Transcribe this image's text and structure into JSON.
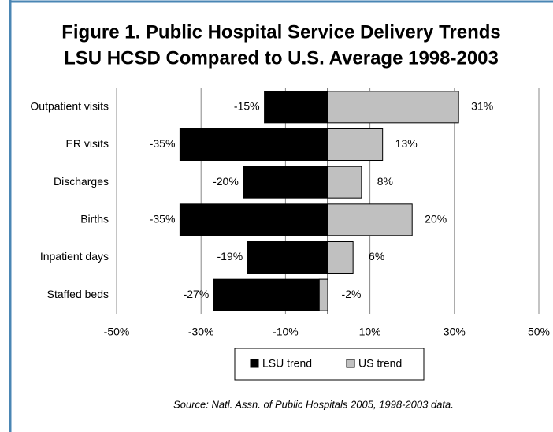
{
  "chart_data": {
    "type": "bar",
    "orientation": "horizontal",
    "title": [
      "Figure 1.  Public Hospital Service Delivery Trends",
      "LSU HCSD Compared to U.S. Average 1998-2003"
    ],
    "categories": [
      "Outpatient visits",
      "ER visits",
      "Discharges",
      "Births",
      "Inpatient days",
      "Staffed beds"
    ],
    "series": [
      {
        "name": "LSU trend",
        "color": "#000000",
        "values": [
          -15,
          -35,
          -20,
          -35,
          -19,
          -27
        ],
        "value_labels": [
          "-15%",
          "-35%",
          "-20%",
          "-35%",
          "-19%",
          "-27%"
        ]
      },
      {
        "name": "US trend",
        "color": "#c0c0c0",
        "values": [
          31,
          13,
          8,
          20,
          6,
          -2
        ],
        "value_labels": [
          "31%",
          "13%",
          "8%",
          "20%",
          "6%",
          "-2%"
        ]
      }
    ],
    "xlim": [
      -50,
      50
    ],
    "xticks": [
      {
        "value": -50,
        "label": "-50%"
      },
      {
        "value": -30,
        "label": "-30%"
      },
      {
        "value": -10,
        "label": "-10%"
      },
      {
        "value": 10,
        "label": "10%"
      },
      {
        "value": 30,
        "label": "30%"
      },
      {
        "value": 50,
        "label": "50%"
      }
    ],
    "grid": true,
    "legend": "bottom",
    "source": "Source: Natl. Assn. of Public Hospitals 2005, 1998-2003 data."
  }
}
